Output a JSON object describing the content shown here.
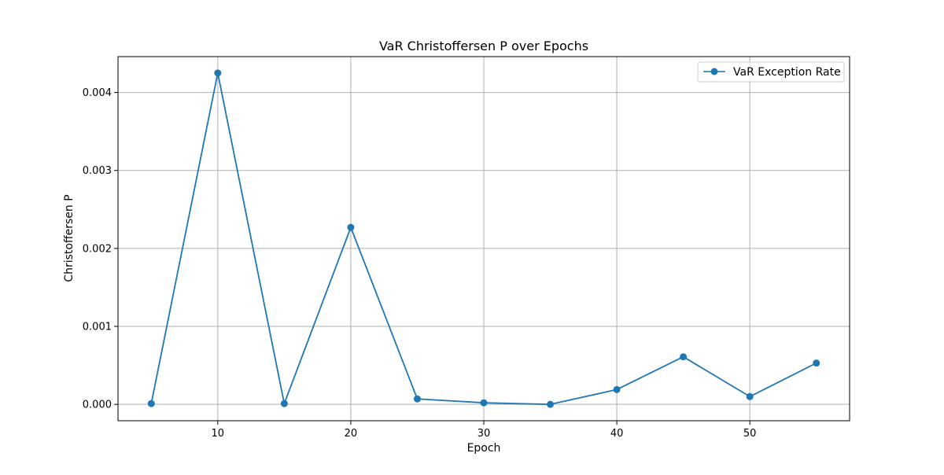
{
  "chart_data": {
    "type": "line",
    "title": "VaR Christoffersen P over Epochs",
    "xlabel": "Epoch",
    "ylabel": "Christoffersen P",
    "xlim": [
      2.5,
      57.5
    ],
    "ylim": [
      -0.00021,
      0.00446
    ],
    "xticks": [
      10,
      20,
      30,
      40,
      50
    ],
    "xtick_labels": [
      "10",
      "20",
      "30",
      "40",
      "50"
    ],
    "yticks": [
      0,
      0.001,
      0.002,
      0.003,
      0.004
    ],
    "ytick_labels": [
      "0.000",
      "0.001",
      "0.002",
      "0.003",
      "0.004"
    ],
    "grid": true,
    "legend_position": "top-right",
    "series": [
      {
        "name": "VaR Exception Rate",
        "color": "#1f77b4",
        "marker": "circle",
        "x": [
          5,
          10,
          15,
          20,
          25,
          30,
          35,
          40,
          45,
          50,
          55
        ],
        "y": [
          1e-05,
          0.00425,
          1e-05,
          0.00227,
          7e-05,
          2e-05,
          0.0,
          0.00019,
          0.00061,
          0.0001,
          0.00053
        ]
      }
    ]
  }
}
